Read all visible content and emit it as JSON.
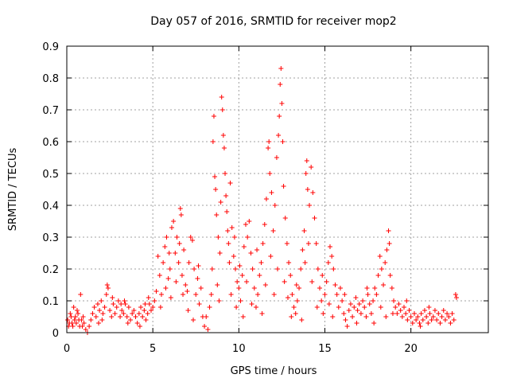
{
  "chart_data": {
    "type": "scatter",
    "title": "Day 057 of 2016, SRMTID for receiver mop2",
    "xlabel": "GPS time / hours",
    "ylabel": "SRMTID / TECUs",
    "xlim": [
      0,
      24.5
    ],
    "ylim": [
      0,
      0.9
    ],
    "x_ticks": [
      0,
      5,
      10,
      15,
      20
    ],
    "x_tick_labels": [
      "0",
      "5",
      "10",
      "15",
      "20"
    ],
    "y_ticks": [
      0,
      0.1,
      0.2,
      0.3,
      0.4,
      0.5,
      0.6,
      0.7,
      0.8,
      0.9
    ],
    "y_tick_labels": [
      "0",
      "0.1",
      "0.2",
      "0.3",
      "0.4",
      "0.5",
      "0.6",
      "0.7",
      "0.8",
      "0.9"
    ],
    "grid": true,
    "marker": "+",
    "marker_color": "#ff0000",
    "series": [
      {
        "name": "mop2",
        "points": [
          [
            0.05,
            0.04
          ],
          [
            0.15,
            0.03
          ],
          [
            0.25,
            0.05
          ],
          [
            0.35,
            0.02
          ],
          [
            0.45,
            0.04
          ],
          [
            0.55,
            0.03
          ],
          [
            0.65,
            0.06
          ],
          [
            0.75,
            0.02
          ],
          [
            0.85,
            0.04
          ],
          [
            0.95,
            0.05
          ],
          [
            0.1,
            0.02
          ],
          [
            0.3,
            0.03
          ],
          [
            0.5,
            0.05
          ],
          [
            0.7,
            0.04
          ],
          [
            0.9,
            0.02
          ],
          [
            1.0,
            0.03
          ],
          [
            0.8,
            0.12
          ],
          [
            0.6,
            0.07
          ],
          [
            0.4,
            0.08
          ],
          [
            0.2,
            0.06
          ],
          [
            1.1,
            0.01
          ],
          [
            1.2,
            0.0
          ],
          [
            1.3,
            0.02
          ],
          [
            1.4,
            0.04
          ],
          [
            1.5,
            0.06
          ],
          [
            1.6,
            0.08
          ],
          [
            1.7,
            0.05
          ],
          [
            1.8,
            0.09
          ],
          [
            1.9,
            0.07
          ],
          [
            2.0,
            0.1
          ],
          [
            2.1,
            0.06
          ],
          [
            2.2,
            0.08
          ],
          [
            2.3,
            0.12
          ],
          [
            2.4,
            0.14
          ],
          [
            2.5,
            0.07
          ],
          [
            2.6,
            0.05
          ],
          [
            2.7,
            0.09
          ],
          [
            2.8,
            0.06
          ],
          [
            2.9,
            0.08
          ],
          [
            3.0,
            0.1
          ],
          [
            3.1,
            0.05
          ],
          [
            3.2,
            0.07
          ],
          [
            3.3,
            0.06
          ],
          [
            3.4,
            0.09
          ],
          [
            3.5,
            0.05
          ],
          [
            3.6,
            0.08
          ],
          [
            3.7,
            0.04
          ],
          [
            3.8,
            0.06
          ],
          [
            3.9,
            0.07
          ],
          [
            4.0,
            0.05
          ],
          [
            4.1,
            0.03
          ],
          [
            4.2,
            0.06
          ],
          [
            4.3,
            0.08
          ],
          [
            4.4,
            0.05
          ],
          [
            4.5,
            0.07
          ],
          [
            4.6,
            0.04
          ],
          [
            4.7,
            0.06
          ],
          [
            4.8,
            0.09
          ],
          [
            4.9,
            0.07
          ],
          [
            5.0,
            0.08
          ],
          [
            2.35,
            0.15
          ],
          [
            2.65,
            0.11
          ],
          [
            3.15,
            0.09
          ],
          [
            3.55,
            0.03
          ],
          [
            4.25,
            0.02
          ],
          [
            4.75,
            0.11
          ],
          [
            1.85,
            0.03
          ],
          [
            2.05,
            0.04
          ],
          [
            3.35,
            0.1
          ],
          [
            4.55,
            0.09
          ],
          [
            5.1,
            0.1
          ],
          [
            5.2,
            0.13
          ],
          [
            5.3,
            0.24
          ],
          [
            5.4,
            0.18
          ],
          [
            5.5,
            0.12
          ],
          [
            5.6,
            0.22
          ],
          [
            5.7,
            0.27
          ],
          [
            5.8,
            0.3
          ],
          [
            5.9,
            0.17
          ],
          [
            6.0,
            0.2
          ],
          [
            6.1,
            0.33
          ],
          [
            6.2,
            0.35
          ],
          [
            6.3,
            0.25
          ],
          [
            6.4,
            0.3
          ],
          [
            6.5,
            0.22
          ],
          [
            6.6,
            0.39
          ],
          [
            6.65,
            0.37
          ],
          [
            6.7,
            0.18
          ],
          [
            6.8,
            0.26
          ],
          [
            6.9,
            0.15
          ],
          [
            7.0,
            0.13
          ],
          [
            7.1,
            0.22
          ],
          [
            7.2,
            0.3
          ],
          [
            7.3,
            0.29
          ],
          [
            7.4,
            0.2
          ],
          [
            7.5,
            0.12
          ],
          [
            7.6,
            0.17
          ],
          [
            7.7,
            0.09
          ],
          [
            7.8,
            0.14
          ],
          [
            7.9,
            0.05
          ],
          [
            5.45,
            0.08
          ],
          [
            5.75,
            0.14
          ],
          [
            6.05,
            0.11
          ],
          [
            6.35,
            0.16
          ],
          [
            6.75,
            0.12
          ],
          [
            7.05,
            0.07
          ],
          [
            7.35,
            0.04
          ],
          [
            7.65,
            0.21
          ],
          [
            6.55,
            0.28
          ],
          [
            5.95,
            0.25
          ],
          [
            8.0,
            0.02
          ],
          [
            8.1,
            0.05
          ],
          [
            8.2,
            0.01
          ],
          [
            8.3,
            0.08
          ],
          [
            8.4,
            0.12
          ],
          [
            8.5,
            0.6
          ],
          [
            8.55,
            0.68
          ],
          [
            8.6,
            0.49
          ],
          [
            8.65,
            0.45
          ],
          [
            8.7,
            0.37
          ],
          [
            8.8,
            0.3
          ],
          [
            8.9,
            0.25
          ],
          [
            9.0,
            0.74
          ],
          [
            9.05,
            0.7
          ],
          [
            9.1,
            0.62
          ],
          [
            9.15,
            0.58
          ],
          [
            9.2,
            0.5
          ],
          [
            9.25,
            0.43
          ],
          [
            9.3,
            0.38
          ],
          [
            9.35,
            0.32
          ],
          [
            9.4,
            0.28
          ],
          [
            9.5,
            0.47
          ],
          [
            9.6,
            0.33
          ],
          [
            9.7,
            0.24
          ],
          [
            9.8,
            0.2
          ],
          [
            9.9,
            0.16
          ],
          [
            10.0,
            0.14
          ],
          [
            10.1,
            0.1
          ],
          [
            10.2,
            0.18
          ],
          [
            10.3,
            0.27
          ],
          [
            8.45,
            0.2
          ],
          [
            8.75,
            0.15
          ],
          [
            8.85,
            0.1
          ],
          [
            9.45,
            0.22
          ],
          [
            9.55,
            0.12
          ],
          [
            9.75,
            0.3
          ],
          [
            9.85,
            0.08
          ],
          [
            10.05,
            0.21
          ],
          [
            10.25,
            0.05
          ],
          [
            8.95,
            0.41
          ],
          [
            10.4,
            0.34
          ],
          [
            10.5,
            0.3
          ],
          [
            10.6,
            0.35
          ],
          [
            10.7,
            0.25
          ],
          [
            10.8,
            0.2
          ],
          [
            10.9,
            0.14
          ],
          [
            11.0,
            0.08
          ],
          [
            11.1,
            0.12
          ],
          [
            11.2,
            0.18
          ],
          [
            11.3,
            0.22
          ],
          [
            11.4,
            0.28
          ],
          [
            11.5,
            0.34
          ],
          [
            11.6,
            0.42
          ],
          [
            11.7,
            0.58
          ],
          [
            11.75,
            0.6
          ],
          [
            11.8,
            0.5
          ],
          [
            11.9,
            0.44
          ],
          [
            12.0,
            0.32
          ],
          [
            12.1,
            0.4
          ],
          [
            12.2,
            0.55
          ],
          [
            12.3,
            0.62
          ],
          [
            12.35,
            0.68
          ],
          [
            12.4,
            0.78
          ],
          [
            12.45,
            0.83
          ],
          [
            12.5,
            0.72
          ],
          [
            12.55,
            0.6
          ],
          [
            12.6,
            0.46
          ],
          [
            12.7,
            0.36
          ],
          [
            12.8,
            0.28
          ],
          [
            12.9,
            0.22
          ],
          [
            10.45,
            0.16
          ],
          [
            10.75,
            0.09
          ],
          [
            11.05,
            0.26
          ],
          [
            11.35,
            0.06
          ],
          [
            11.55,
            0.15
          ],
          [
            11.85,
            0.24
          ],
          [
            12.05,
            0.12
          ],
          [
            12.25,
            0.2
          ],
          [
            12.65,
            0.16
          ],
          [
            12.85,
            0.11
          ],
          [
            13.0,
            0.18
          ],
          [
            13.1,
            0.12
          ],
          [
            13.2,
            0.08
          ],
          [
            13.3,
            0.06
          ],
          [
            13.4,
            0.1
          ],
          [
            13.5,
            0.14
          ],
          [
            13.6,
            0.2
          ],
          [
            13.7,
            0.26
          ],
          [
            13.8,
            0.32
          ],
          [
            13.9,
            0.5
          ],
          [
            13.95,
            0.54
          ],
          [
            14.0,
            0.45
          ],
          [
            14.1,
            0.4
          ],
          [
            14.2,
            0.52
          ],
          [
            14.3,
            0.44
          ],
          [
            14.4,
            0.36
          ],
          [
            14.5,
            0.28
          ],
          [
            14.6,
            0.2
          ],
          [
            14.7,
            0.14
          ],
          [
            14.8,
            0.1
          ],
          [
            14.9,
            0.06
          ],
          [
            15.0,
            0.12
          ],
          [
            15.1,
            0.16
          ],
          [
            15.2,
            0.22
          ],
          [
            15.3,
            0.27
          ],
          [
            15.4,
            0.24
          ],
          [
            15.5,
            0.2
          ],
          [
            15.6,
            0.15
          ],
          [
            15.7,
            0.12
          ],
          [
            15.8,
            0.08
          ],
          [
            13.05,
            0.05
          ],
          [
            13.35,
            0.15
          ],
          [
            13.65,
            0.04
          ],
          [
            13.85,
            0.22
          ],
          [
            14.05,
            0.28
          ],
          [
            14.25,
            0.16
          ],
          [
            14.55,
            0.08
          ],
          [
            14.85,
            0.18
          ],
          [
            15.25,
            0.09
          ],
          [
            15.45,
            0.05
          ],
          [
            15.9,
            0.14
          ],
          [
            16.0,
            0.1
          ],
          [
            16.1,
            0.06
          ],
          [
            16.2,
            0.04
          ],
          [
            16.3,
            0.02
          ],
          [
            16.4,
            0.07
          ],
          [
            16.5,
            0.09
          ],
          [
            16.6,
            0.05
          ],
          [
            16.7,
            0.08
          ],
          [
            16.8,
            0.11
          ],
          [
            16.9,
            0.07
          ],
          [
            17.0,
            0.09
          ],
          [
            17.1,
            0.06
          ],
          [
            17.2,
            0.1
          ],
          [
            17.3,
            0.08
          ],
          [
            17.4,
            0.05
          ],
          [
            17.5,
            0.12
          ],
          [
            17.6,
            0.09
          ],
          [
            17.7,
            0.06
          ],
          [
            17.8,
            0.1
          ],
          [
            17.9,
            0.14
          ],
          [
            18.0,
            0.12
          ],
          [
            18.1,
            0.18
          ],
          [
            18.2,
            0.24
          ],
          [
            18.3,
            0.2
          ],
          [
            18.4,
            0.15
          ],
          [
            18.5,
            0.22
          ],
          [
            18.6,
            0.26
          ],
          [
            18.7,
            0.32
          ],
          [
            18.75,
            0.28
          ],
          [
            18.8,
            0.18
          ],
          [
            18.9,
            0.14
          ],
          [
            19.0,
            0.1
          ],
          [
            16.15,
            0.12
          ],
          [
            16.85,
            0.03
          ],
          [
            17.45,
            0.14
          ],
          [
            17.85,
            0.03
          ],
          [
            18.25,
            0.08
          ],
          [
            18.55,
            0.05
          ],
          [
            18.95,
            0.06
          ],
          [
            19.1,
            0.08
          ],
          [
            19.2,
            0.06
          ],
          [
            19.3,
            0.09
          ],
          [
            19.4,
            0.07
          ],
          [
            19.5,
            0.05
          ],
          [
            19.6,
            0.08
          ],
          [
            19.7,
            0.06
          ],
          [
            19.8,
            0.04
          ],
          [
            19.9,
            0.07
          ],
          [
            20.0,
            0.05
          ],
          [
            20.1,
            0.03
          ],
          [
            20.2,
            0.06
          ],
          [
            20.3,
            0.04
          ],
          [
            20.4,
            0.05
          ],
          [
            20.5,
            0.03
          ],
          [
            20.6,
            0.06
          ],
          [
            20.7,
            0.04
          ],
          [
            20.8,
            0.07
          ],
          [
            20.9,
            0.05
          ],
          [
            21.0,
            0.03
          ],
          [
            21.1,
            0.06
          ],
          [
            21.2,
            0.04
          ],
          [
            21.3,
            0.05
          ],
          [
            21.4,
            0.07
          ],
          [
            21.5,
            0.04
          ],
          [
            21.6,
            0.06
          ],
          [
            21.7,
            0.03
          ],
          [
            21.8,
            0.05
          ],
          [
            21.9,
            0.07
          ],
          [
            22.0,
            0.04
          ],
          [
            22.1,
            0.06
          ],
          [
            22.2,
            0.05
          ],
          [
            22.3,
            0.03
          ],
          [
            22.4,
            0.06
          ],
          [
            22.5,
            0.04
          ],
          [
            22.6,
            0.12
          ],
          [
            22.65,
            0.11
          ],
          [
            21.05,
            0.08
          ],
          [
            20.55,
            0.02
          ],
          [
            19.75,
            0.1
          ]
        ]
      }
    ]
  }
}
